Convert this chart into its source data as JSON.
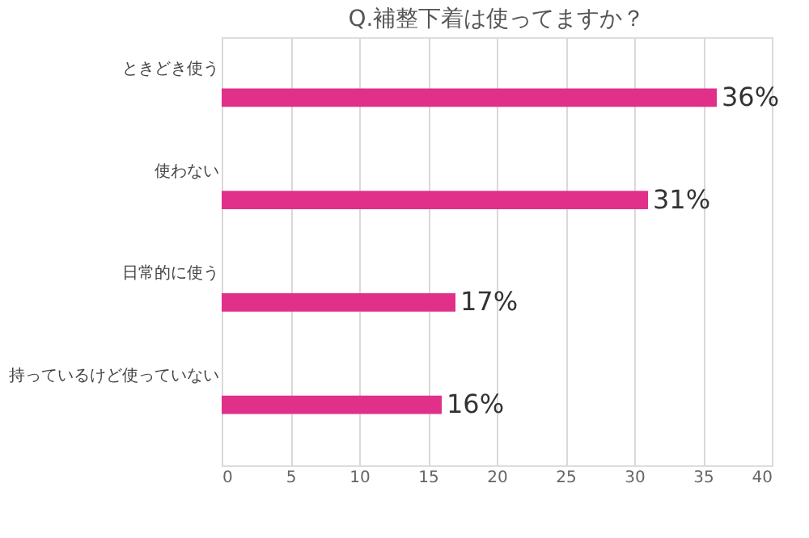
{
  "chart_data": {
    "type": "bar",
    "orientation": "horizontal",
    "title": "Q.補整下着は使ってますか？",
    "categories": [
      "ときどき使う",
      "使わない",
      "日常的に使う",
      "持っているけど使っていない"
    ],
    "values": [
      36,
      31,
      17,
      16
    ],
    "color": "#e0308a",
    "value_labels": [
      "36%",
      "31%",
      "17%",
      "16%"
    ],
    "xlim": [
      0,
      40
    ],
    "xticks": [
      0,
      5,
      10,
      15,
      20,
      25,
      30,
      35,
      40
    ],
    "grid": "x"
  }
}
